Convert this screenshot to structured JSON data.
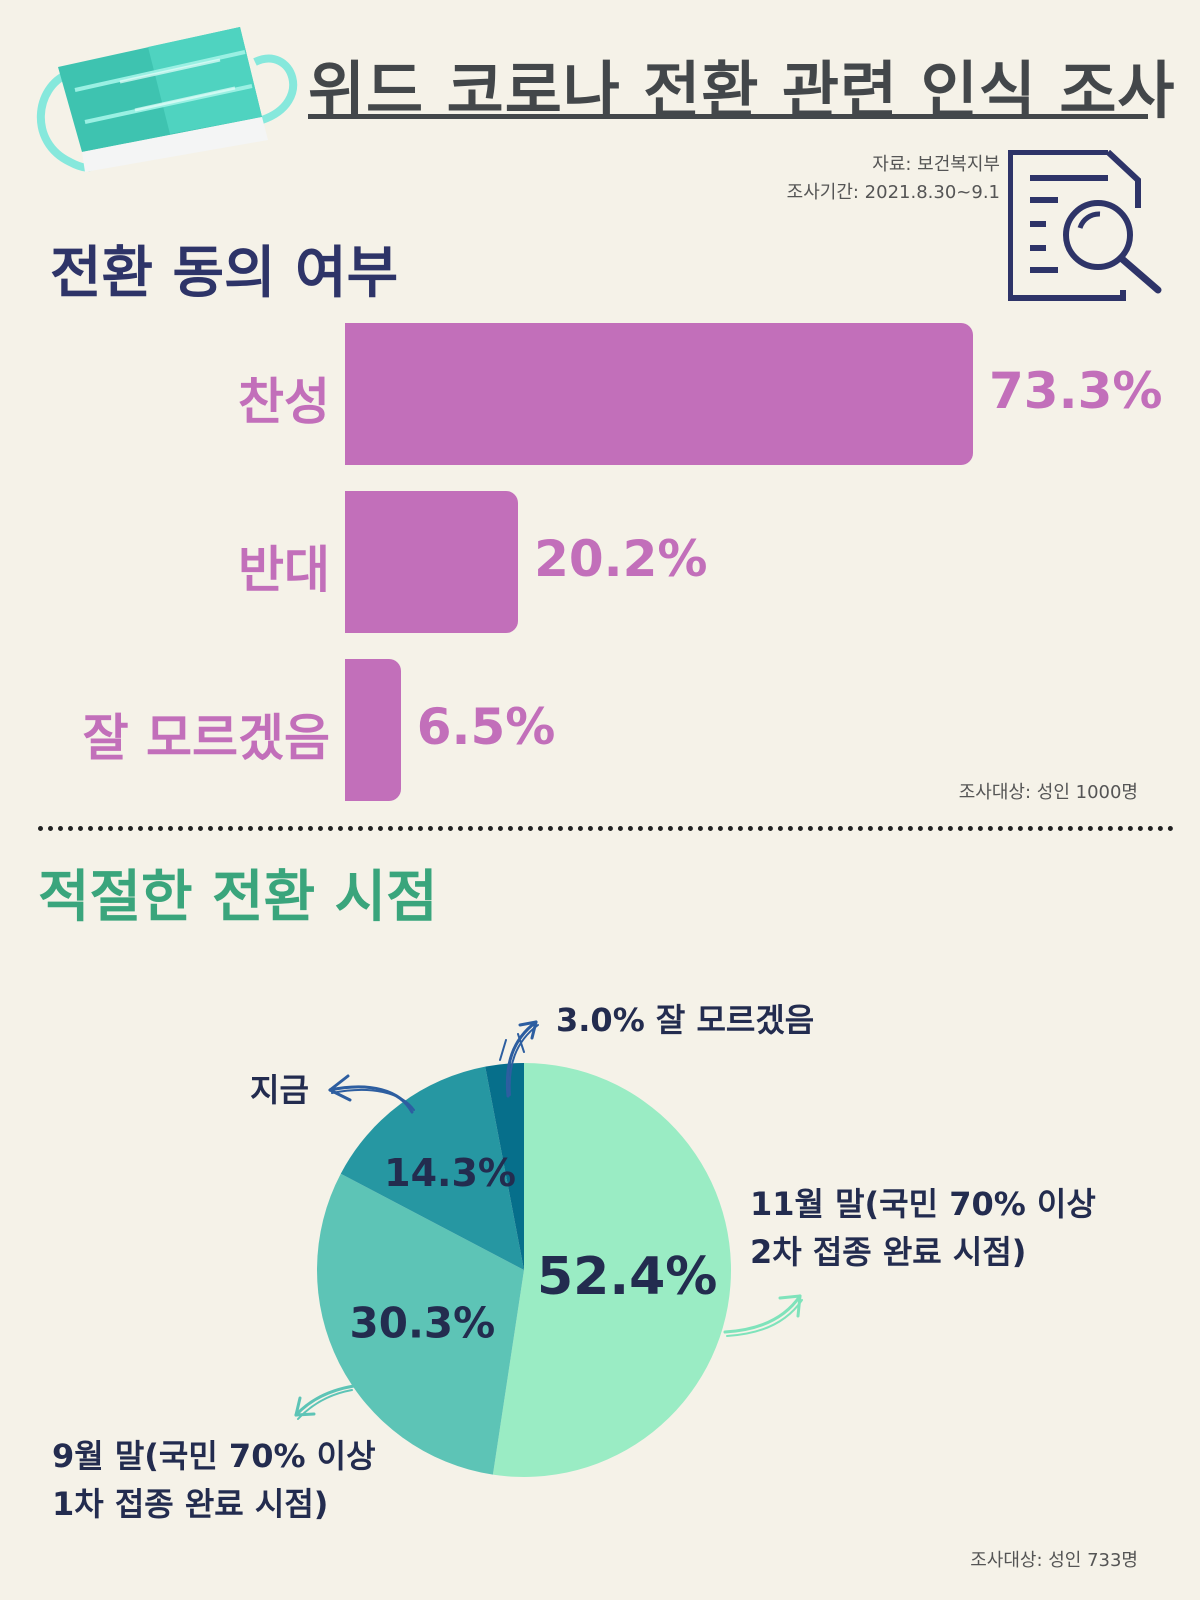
{
  "header": {
    "title": "위드 코로나 전환 관련 인식 조사",
    "source": "자료: 보건복지부",
    "period": "조사기간: 2021.8.30~9.1"
  },
  "colors": {
    "background": "#f5f2e8",
    "bar": "#c26fba",
    "heading_navy": "#2e3468",
    "heading_green": "#3aa57c",
    "pie": [
      "#9aecc4",
      "#5dc4b6",
      "#2697a2",
      "#066f8b"
    ]
  },
  "icons": [
    "face-mask-icon",
    "document-search-icon"
  ],
  "section1": {
    "heading": "전환 동의 여부",
    "note": "조사대상: 성인 1000명"
  },
  "section2": {
    "heading": "적절한 전환 시점",
    "note": "조사대상: 성인 733명",
    "annotations": {
      "dontknow": "3.0% 잘 모르겠음",
      "now": "지금",
      "nov_line1": "11월 말(국민 70% 이상",
      "nov_line2": "2차 접종 완료 시점)",
      "sep_line1": "9월 말(국민 70% 이상",
      "sep_line2": "1차 접종 완료 시점)"
    }
  },
  "chart_data": [
    {
      "type": "bar",
      "orientation": "horizontal",
      "title": "전환 동의 여부",
      "categories": [
        "찬성",
        "반대",
        "잘 모르겠음"
      ],
      "values": [
        73.3,
        20.2,
        6.5
      ],
      "value_labels": [
        "73.3%",
        "20.2%",
        "6.5%"
      ],
      "unit": "%"
    },
    {
      "type": "pie",
      "title": "적절한 전환 시점",
      "categories": [
        "11월 말",
        "9월 말",
        "지금",
        "잘 모르겠음"
      ],
      "values": [
        52.4,
        30.3,
        14.3,
        3.0
      ],
      "value_labels": [
        "52.4%",
        "30.3%",
        "14.3%",
        ""
      ],
      "unit": "%"
    }
  ]
}
